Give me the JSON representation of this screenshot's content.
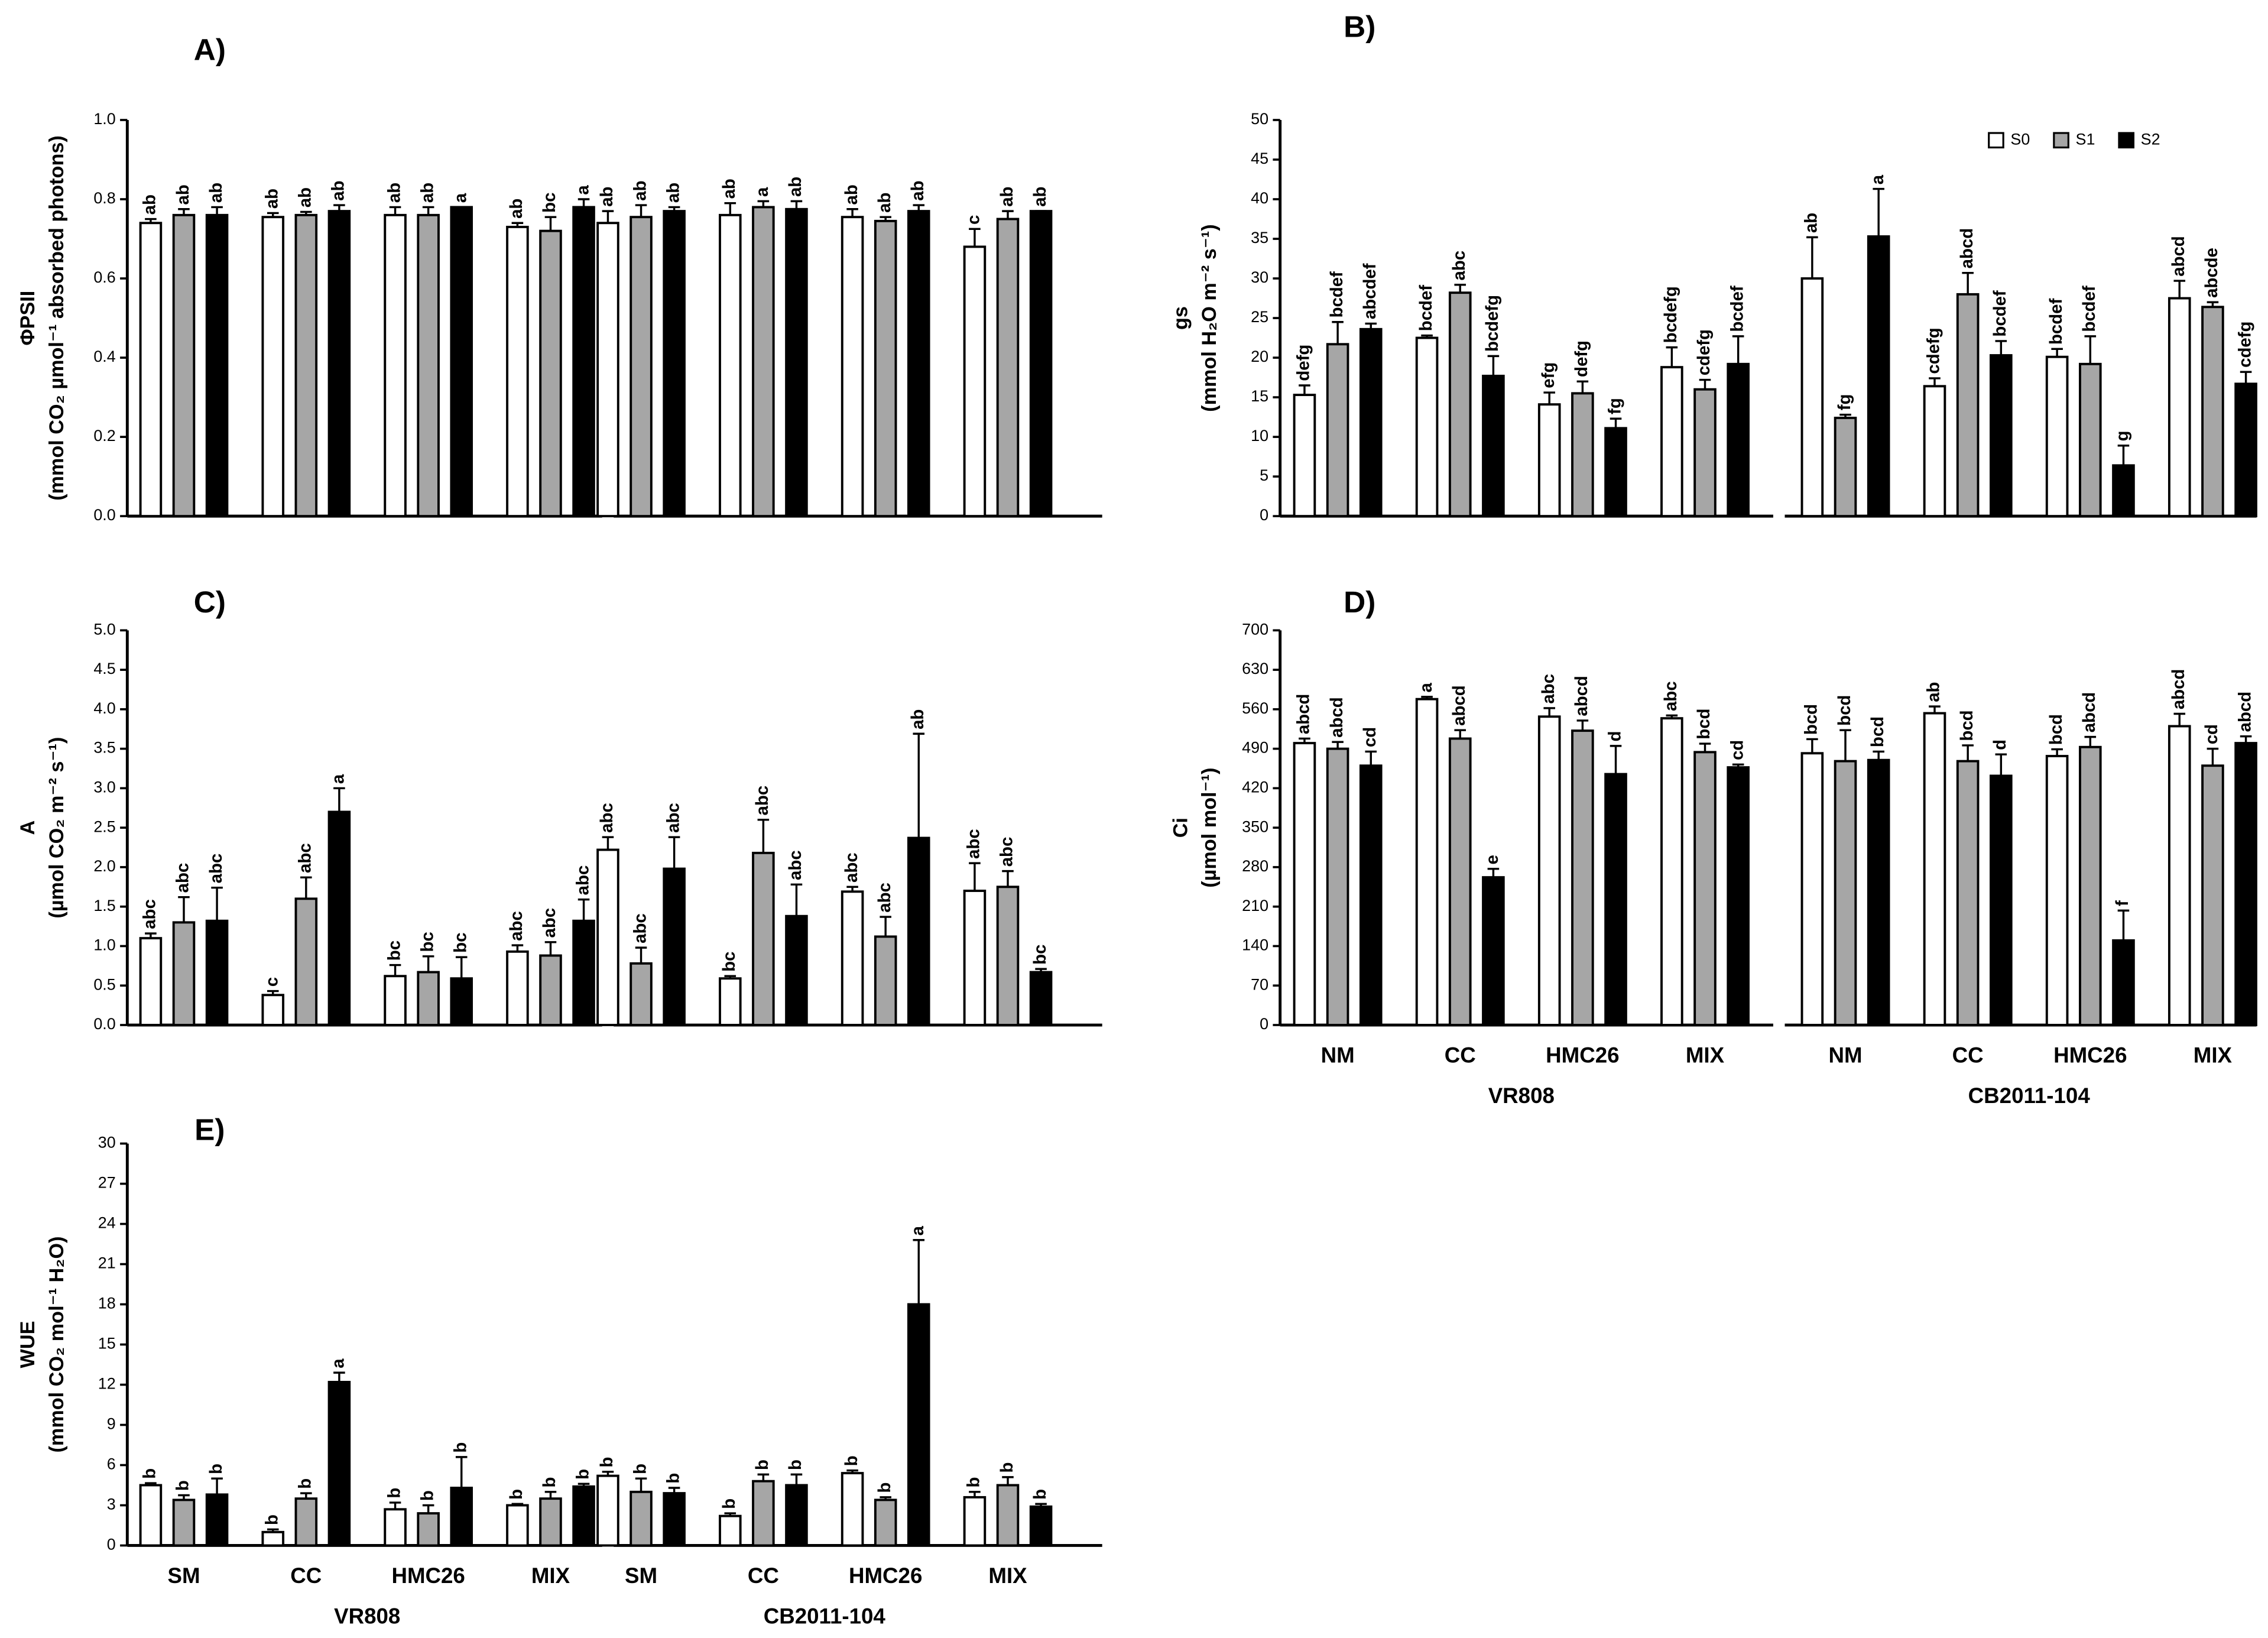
{
  "chart_data": [
    {
      "type": "bar",
      "title": "A)",
      "y_label": [
        "ΦPSII",
        "(mmol CO₂ µmol⁻¹ absorbed photons)"
      ],
      "ylim": [
        0,
        1
      ],
      "yticks": [
        {
          "value": 0,
          "label": "0.0"
        },
        0.2,
        0.4,
        0.6,
        0.8,
        {
          "value": 1,
          "label": "1.0"
        }
      ],
      "series": [
        {
          "name": "S0",
          "color": "#ffffff",
          "values": [
            0.74,
            0.755,
            0.76,
            0.73,
            0.74,
            0.76,
            0.755,
            0.68
          ],
          "errors": [
            0.01,
            0.01,
            0.02,
            0.01,
            0.03,
            0.03,
            0.02,
            0.045
          ],
          "letters": [
            "ab",
            "ab",
            "ab",
            "ab",
            "ab",
            "ab",
            "ab",
            "c"
          ]
        },
        {
          "name": "S1",
          "color": "#a6a6a6",
          "values": [
            0.76,
            0.76,
            0.76,
            0.72,
            0.755,
            0.78,
            0.745,
            0.75
          ],
          "errors": [
            0.015,
            0.008,
            0.02,
            0.035,
            0.03,
            0.015,
            0.01,
            0.02
          ],
          "letters": [
            "ab",
            "ab",
            "ab",
            "bc",
            "ab",
            "a",
            "ab",
            "ab"
          ]
        },
        {
          "name": "S2",
          "color": "#000000",
          "values": [
            0.76,
            0.77,
            0.78,
            0.78,
            0.77,
            0.775,
            0.77,
            0.77
          ],
          "errors": [
            0.02,
            0.015,
            0,
            0.02,
            0.01,
            0.02,
            0.015,
            0
          ],
          "letters": [
            "ab",
            "ab",
            "a",
            "a",
            "ab",
            "ab",
            "ab",
            "ab"
          ]
        }
      ]
    },
    {
      "type": "bar",
      "title": "B)",
      "y_label": [
        "gs",
        "(mmol H₂O m⁻² s⁻¹)"
      ],
      "legend": "top-right",
      "ylim": [
        0,
        50
      ],
      "yticks": [
        0,
        5,
        10,
        15,
        20,
        25,
        30,
        35,
        40,
        45,
        50
      ],
      "series": [
        {
          "name": "S0",
          "color": "#ffffff",
          "values": [
            15.3,
            22.5,
            14.1,
            18.8,
            30,
            16.4,
            20.1,
            27.5
          ],
          "errors": [
            1.2,
            0.3,
            1.5,
            2.5,
            5.2,
            1,
            1,
            2.2
          ],
          "letters": [
            "defg",
            "bcdef",
            "efg",
            "bcdefg",
            "ab",
            "cdefg",
            "bcdef",
            "abcd"
          ]
        },
        {
          "name": "S1",
          "color": "#a6a6a6",
          "values": [
            21.7,
            28.2,
            15.5,
            16,
            12.4,
            28,
            19.2,
            26.4
          ],
          "errors": [
            2.8,
            1,
            1.5,
            1.2,
            0.4,
            2.7,
            3.5,
            0.6
          ],
          "letters": [
            "bcdef",
            "abc",
            "defg",
            "cdefg",
            "fg",
            "abcd",
            "bcdef",
            "abcde"
          ]
        },
        {
          "name": "S2",
          "color": "#000000",
          "values": [
            23.6,
            17.7,
            11.1,
            19.2,
            35.3,
            20.3,
            6.4,
            16.7
          ],
          "errors": [
            0.7,
            2.5,
            1.2,
            3.5,
            6,
            1.8,
            2.5,
            1.5
          ],
          "letters": [
            "abcdef",
            "bcdefg",
            "fg",
            "bcdef",
            "a",
            "bcdef",
            "g",
            "cdefg"
          ]
        }
      ]
    },
    {
      "type": "bar",
      "title": "C)",
      "y_label": [
        "A",
        "(µmol CO₂ m⁻² s⁻¹)"
      ],
      "ylim": [
        0,
        5
      ],
      "yticks": [
        {
          "value": 0,
          "label": "0.0"
        },
        0.5,
        {
          "value": 1,
          "label": "1.0"
        },
        1.5,
        {
          "value": 2,
          "label": "2.0"
        },
        2.5,
        {
          "value": 3,
          "label": "3.0"
        },
        3.5,
        {
          "value": 4,
          "label": "4.0"
        },
        4.5,
        {
          "value": 5,
          "label": "5.0"
        }
      ],
      "series": [
        {
          "name": "S0",
          "color": "#ffffff",
          "values": [
            1.1,
            0.38,
            0.62,
            0.93,
            2.22,
            0.59,
            1.69,
            1.7
          ],
          "errors": [
            0.06,
            0.05,
            0.14,
            0.08,
            0.16,
            0.03,
            0.06,
            0.35
          ],
          "letters": [
            "abc",
            "c",
            "bc",
            "abc",
            "abc",
            "bc",
            "abc",
            "abc"
          ]
        },
        {
          "name": "S1",
          "color": "#a6a6a6",
          "values": [
            1.3,
            1.6,
            0.67,
            0.88,
            0.78,
            2.18,
            1.12,
            1.75
          ],
          "errors": [
            0.32,
            0.27,
            0.2,
            0.17,
            0.2,
            0.42,
            0.25,
            0.2
          ],
          "letters": [
            "abc",
            "abc",
            "bc",
            "abc",
            "abc",
            "abc",
            "abc",
            "abc"
          ]
        },
        {
          "name": "S2",
          "color": "#000000",
          "values": [
            1.32,
            2.7,
            0.59,
            1.32,
            1.98,
            1.38,
            2.37,
            0.67
          ],
          "errors": [
            0.42,
            0.3,
            0.27,
            0.27,
            0.4,
            0.4,
            1.32,
            0.04
          ],
          "letters": [
            "abc",
            "a",
            "bc",
            "abc",
            "abc",
            "abc",
            "ab",
            "bc"
          ]
        }
      ]
    },
    {
      "type": "bar",
      "title": "D)",
      "y_label": [
        "Ci",
        "(µmol mol⁻¹)"
      ],
      "categories": [
        "NM",
        "CC",
        "HMC26",
        "MIX",
        "NM",
        "CC",
        "HMC26",
        "MIX"
      ],
      "groups": [
        "VR808",
        "CB2011-104"
      ],
      "ylim": [
        0,
        700
      ],
      "yticks": [
        0,
        70,
        140,
        210,
        280,
        350,
        420,
        490,
        560,
        630,
        700
      ],
      "series": [
        {
          "name": "S0",
          "color": "#ffffff",
          "values": [
            500,
            578,
            547,
            544,
            482,
            553,
            477,
            530
          ],
          "errors": [
            8,
            4,
            15,
            5,
            25,
            12,
            12,
            22
          ],
          "letters": [
            "abcd",
            "a",
            "abc",
            "abc",
            "bcd",
            "ab",
            "bcd",
            "abcd"
          ]
        },
        {
          "name": "S1",
          "color": "#a6a6a6",
          "values": [
            490,
            508,
            522,
            484,
            468,
            468,
            493,
            460
          ],
          "errors": [
            12,
            15,
            18,
            15,
            55,
            28,
            18,
            30
          ],
          "letters": [
            "abcd",
            "abcd",
            "abcd",
            "bcd",
            "bcd",
            "bcd",
            "abcd",
            "cd"
          ]
        },
        {
          "name": "S2",
          "color": "#000000",
          "values": [
            460,
            262,
            445,
            457,
            470,
            442,
            150,
            500
          ],
          "errors": [
            25,
            15,
            50,
            5,
            15,
            38,
            53,
            12
          ],
          "letters": [
            "cd",
            "e",
            "d",
            "cd",
            "bcd",
            "d",
            "f",
            "abcd"
          ]
        }
      ]
    },
    {
      "type": "bar",
      "title": "E)",
      "y_label": [
        "WUE",
        "(mmol CO₂ mol⁻¹ H₂O)"
      ],
      "categories": [
        "SM",
        "CC",
        "HMC26",
        "MIX",
        "SM",
        "CC",
        "HMC26",
        "MIX"
      ],
      "groups": [
        "VR808",
        "CB2011-104"
      ],
      "ylim": [
        0,
        30
      ],
      "yticks": [
        0,
        3,
        6,
        9,
        12,
        15,
        18,
        21,
        24,
        27,
        30
      ],
      "series": [
        {
          "name": "S0",
          "color": "#ffffff",
          "values": [
            4.5,
            1,
            2.7,
            3,
            5.2,
            2.2,
            5.4,
            3.6
          ],
          "errors": [
            0.15,
            0.2,
            0.5,
            0.1,
            0.3,
            0.2,
            0.2,
            0.4
          ],
          "letters": [
            "b",
            "b",
            "b",
            "b",
            "b",
            "b",
            "b",
            "b"
          ]
        },
        {
          "name": "S1",
          "color": "#a6a6a6",
          "values": [
            3.4,
            3.5,
            2.4,
            3.5,
            4,
            4.8,
            3.4,
            4.5
          ],
          "errors": [
            0.35,
            0.4,
            0.6,
            0.5,
            1,
            0.5,
            0.2,
            0.6
          ],
          "letters": [
            "b",
            "b",
            "b",
            "b",
            "b",
            "b",
            "b",
            "b"
          ]
        },
        {
          "name": "S2",
          "color": "#000000",
          "values": [
            3.8,
            12.2,
            4.3,
            4.4,
            3.9,
            4.5,
            18,
            2.9
          ],
          "errors": [
            1.2,
            0.7,
            2.3,
            0.2,
            0.4,
            0.8,
            4.8,
            0.2
          ],
          "letters": [
            "b",
            "a",
            "b",
            "b",
            "b",
            "b",
            "a",
            "b"
          ]
        }
      ]
    }
  ]
}
